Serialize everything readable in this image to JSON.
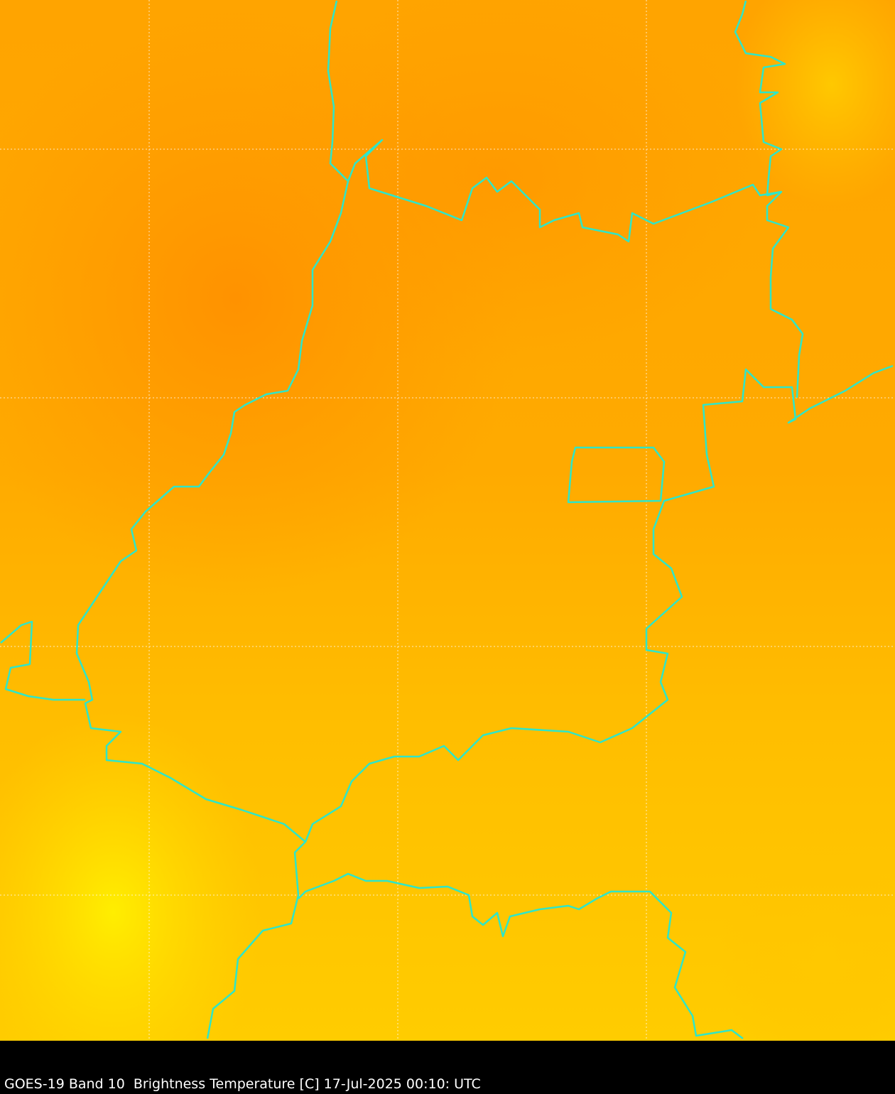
{
  "caption": "GOES-19 Band 10  Brightness Temperature [C] 17-Jul-2025 00:10: UTC",
  "map": {
    "product": "Brightness Temperature",
    "satellite": "GOES-19",
    "band": "10",
    "units": "C",
    "gridlines": true,
    "colors": {
      "warm_orange": "#ff9800",
      "mid_orange": "#ffa800",
      "amber": "#ffc000",
      "yellow": "#ffee00",
      "border": "#2ee6c8",
      "grid": "#ffffff"
    }
  }
}
